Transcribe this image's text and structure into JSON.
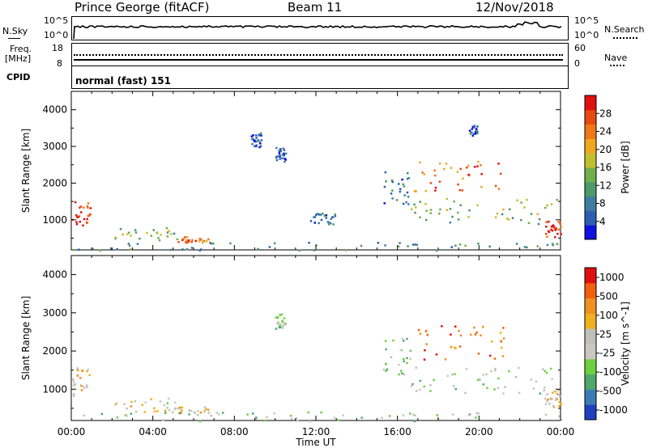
{
  "header": {
    "station": "Prince George (fitACF)",
    "beam": "Beam 11",
    "date": "12/Nov/2018"
  },
  "top_panels": {
    "nsky_label": "N.Sky",
    "nsky_tick_top": "10^5",
    "nsky_tick_bottom": "10^0",
    "nsearch_label": "N.Search",
    "nsearch_tick_top": "10^5",
    "nsearch_tick_bottom": "10^0",
    "freq_label": "Freq.",
    "freq_unit": "[MHz]",
    "freq_tick_top": "18",
    "freq_tick_bottom": "8",
    "nave_label": "Nave",
    "nave_tick_top": "60",
    "nave_tick_bottom": "0",
    "cpid_label": "CPID",
    "cpid_value": "normal (fast) 151"
  },
  "chart_data": [
    {
      "type": "heatmap",
      "name": "Power",
      "ylabel": "Slant Range [km]",
      "xlim": [
        "00:00",
        "00:00"
      ],
      "ylim": [
        180,
        4500
      ],
      "y_ticks": [
        1000,
        2000,
        3000,
        4000
      ],
      "colorbar": {
        "label": "Power [dB]",
        "range": [
          0,
          32
        ],
        "ticks": [
          "4",
          "8",
          "12",
          "16",
          "20",
          "24",
          "28"
        ],
        "colors": [
          "#1010e0",
          "#2c5fb0",
          "#3f7ea0",
          "#4e9a6a",
          "#6fb04a",
          "#c0c030",
          "#f0a820",
          "#f07818",
          "#e84a14",
          "#e01010"
        ]
      },
      "regions": [
        {
          "x": [
            0.0,
            0.9
          ],
          "y": [
            800,
            1600
          ],
          "level": 0.9
        },
        {
          "x": [
            2.1,
            5.3
          ],
          "y": [
            420,
            800
          ],
          "level": 0.45
        },
        {
          "x": [
            5.0,
            6.8
          ],
          "y": [
            400,
            560
          ],
          "level": 0.75
        },
        {
          "x": [
            0.0,
            24.0
          ],
          "y": [
            180,
            420
          ],
          "level": 0.3
        },
        {
          "x": [
            8.8,
            9.3
          ],
          "y": [
            3000,
            3400
          ],
          "level": 0.15
        },
        {
          "x": [
            10.0,
            10.5
          ],
          "y": [
            2600,
            3000
          ],
          "level": 0.2
        },
        {
          "x": [
            11.7,
            12.9
          ],
          "y": [
            900,
            1200
          ],
          "level": 0.2
        },
        {
          "x": [
            15.2,
            16.6
          ],
          "y": [
            1400,
            2400
          ],
          "level": 0.2
        },
        {
          "x": [
            16.8,
            21.3
          ],
          "y": [
            1800,
            2700
          ],
          "level": 0.8
        },
        {
          "x": [
            16.5,
            24.0
          ],
          "y": [
            900,
            1600
          ],
          "level": 0.45
        },
        {
          "x": [
            23.2,
            24.0
          ],
          "y": [
            550,
            1000
          ],
          "level": 0.9
        },
        {
          "x": [
            19.5,
            19.9
          ],
          "y": [
            3300,
            3600
          ],
          "level": 0.2
        }
      ]
    },
    {
      "type": "heatmap",
      "name": "Velocity",
      "xlabel": "Time UT",
      "ylabel": "Slant Range [km]",
      "xlim": [
        "00:00",
        "00:00"
      ],
      "ylim": [
        180,
        4500
      ],
      "y_ticks": [
        1000,
        2000,
        3000,
        4000
      ],
      "x_ticks": [
        "00:00",
        "04:00",
        "08:00",
        "12:00",
        "16:00",
        "20:00",
        "00:00"
      ],
      "colorbar": {
        "label": "Velocity [m s^-1]",
        "ticks": [
          "1000",
          "500",
          "100",
          "25",
          "-25",
          "-100",
          "-500",
          "-1000"
        ],
        "colors": [
          "#2040c0",
          "#3c7cb4",
          "#4fa86c",
          "#6fd040",
          "#c8c8c0",
          "#c0c0b8",
          "#f0b020",
          "#f09020",
          "#f06010",
          "#e01010"
        ]
      },
      "regions": [
        {
          "x": [
            0.0,
            0.9
          ],
          "y": [
            800,
            1600
          ],
          "level": 0.6
        },
        {
          "x": [
            2.1,
            5.3
          ],
          "y": [
            420,
            800
          ],
          "level": 0.55
        },
        {
          "x": [
            5.0,
            6.8
          ],
          "y": [
            400,
            560
          ],
          "level": 0.6
        },
        {
          "x": [
            0.0,
            24.0
          ],
          "y": [
            180,
            420
          ],
          "level": 0.4
        },
        {
          "x": [
            10.0,
            10.5
          ],
          "y": [
            2600,
            3000
          ],
          "level": 0.4
        },
        {
          "x": [
            15.2,
            16.6
          ],
          "y": [
            1400,
            2400
          ],
          "level": 0.4
        },
        {
          "x": [
            16.8,
            21.3
          ],
          "y": [
            1800,
            2700
          ],
          "level": 0.85
        },
        {
          "x": [
            16.5,
            24.0
          ],
          "y": [
            900,
            1600
          ],
          "level": 0.42
        },
        {
          "x": [
            23.2,
            24.0
          ],
          "y": [
            550,
            1000
          ],
          "level": 0.62
        }
      ]
    }
  ]
}
